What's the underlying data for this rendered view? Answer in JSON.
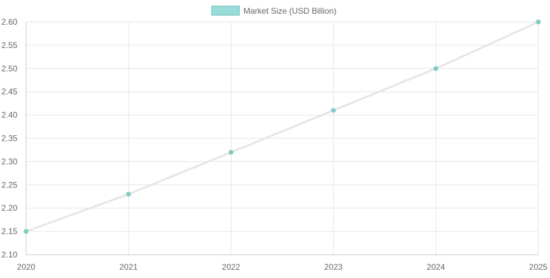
{
  "chart_data": {
    "type": "line",
    "x": [
      "2020",
      "2021",
      "2022",
      "2023",
      "2024",
      "2025"
    ],
    "series": [
      {
        "name": "Market Size (USD Billion)",
        "values": [
          2.15,
          2.23,
          2.32,
          2.41,
          2.5,
          2.6
        ]
      }
    ],
    "ylim": [
      2.1,
      2.6
    ],
    "y_ticks": [
      "2.10",
      "2.15",
      "2.20",
      "2.25",
      "2.30",
      "2.35",
      "2.40",
      "2.45",
      "2.50",
      "2.55",
      "2.60"
    ],
    "grid": true,
    "legend_position": "top-center",
    "colors": {
      "line": "#e6e6e6",
      "point_fill": "#80cbc4",
      "legend_swatch_fill": "#99dcdc",
      "legend_swatch_stroke": "#80cbc4",
      "grid": "#e6e6e6",
      "axis": "#c8c8c8",
      "text": "#666666"
    }
  }
}
